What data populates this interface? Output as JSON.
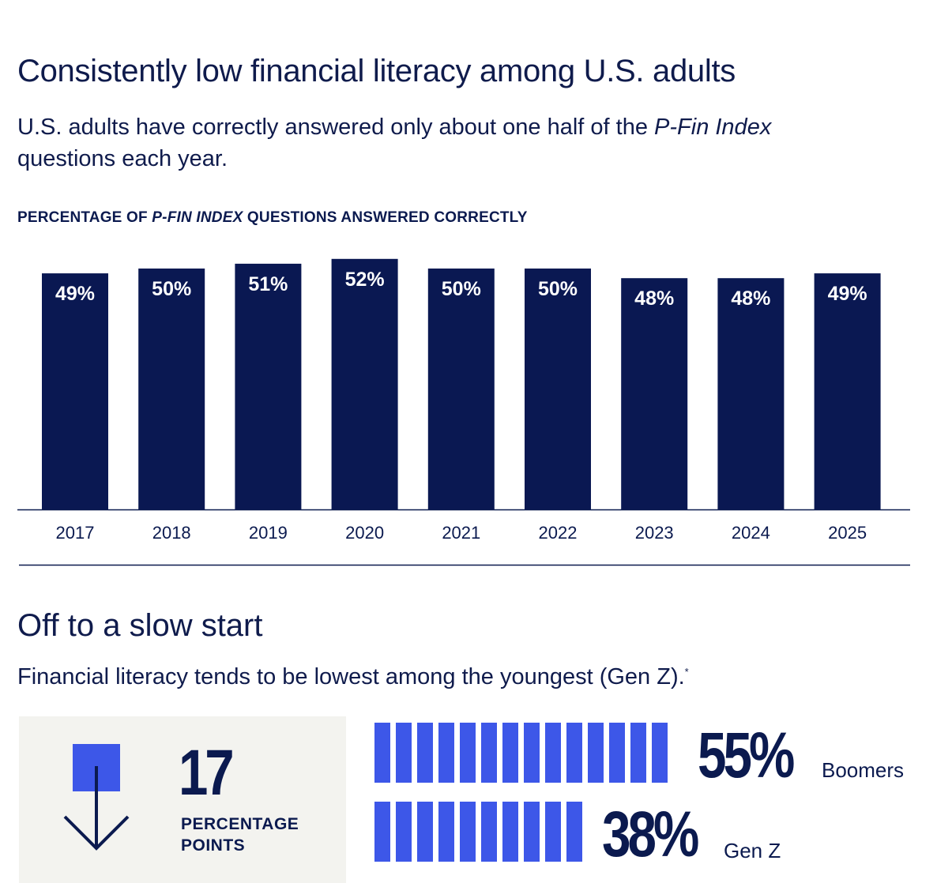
{
  "section1": {
    "title": "Consistently low financial literacy among U.S. adults",
    "subtitle_a": "U.S. adults have correctly answered only about one half of the ",
    "subtitle_italic": "P-Fin Index",
    "subtitle_b": " questions each year.",
    "chart_label_a": "PERCENTAGE OF ",
    "chart_label_italic": "P-FIN INDEX",
    "chart_label_b": " QUESTIONS ANSWERED CORRECTLY"
  },
  "chart_data": {
    "type": "bar",
    "categories": [
      "2017",
      "2018",
      "2019",
      "2020",
      "2021",
      "2022",
      "2023",
      "2024",
      "2025"
    ],
    "values": [
      49,
      50,
      51,
      52,
      50,
      50,
      48,
      48,
      49
    ],
    "value_labels": [
      "49%",
      "50%",
      "51%",
      "52%",
      "50%",
      "50%",
      "48%",
      "48%",
      "49%"
    ],
    "title": "PERCENTAGE OF P-FIN INDEX QUESTIONS ANSWERED CORRECTLY",
    "bar_color": "#0a1852",
    "grid": false
  },
  "section2": {
    "title": "Off to a slow start",
    "subtitle": "Financial literacy tends to be lowest among the youngest (Gen Z).",
    "footnote_mark": "*",
    "stat_number": "17",
    "stat_label_line1": "PERCENTAGE",
    "stat_label_line2": "POINTS",
    "icon": "down-arrow-icon",
    "accent_color": "#3d57e8",
    "comparisons": [
      {
        "label": "Boomers",
        "value_label": "55%",
        "value": 55,
        "segments": 14
      },
      {
        "label": "Gen Z",
        "value_label": "38%",
        "value": 38,
        "segments": 10
      }
    ]
  }
}
